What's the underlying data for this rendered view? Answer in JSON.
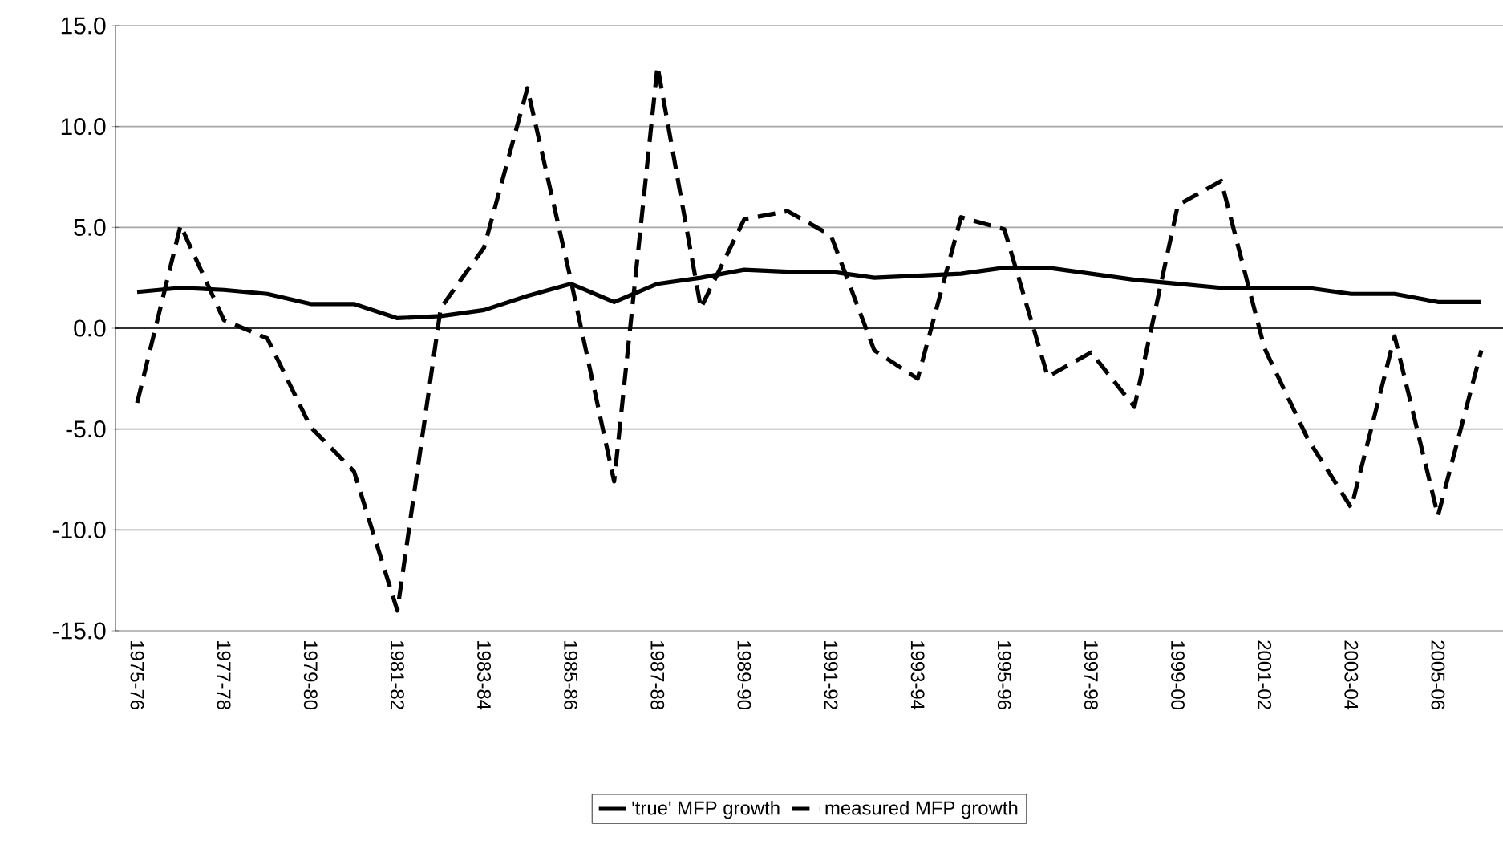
{
  "chart_data": {
    "type": "line",
    "categories": [
      "1975-76",
      null,
      "1977-78",
      null,
      "1979-80",
      null,
      "1981-82",
      null,
      "1983-84",
      null,
      "1985-86",
      null,
      "1987-88",
      null,
      "1989-90",
      null,
      "1991-92",
      null,
      "1993-94",
      null,
      "1995-96",
      null,
      "1997-98",
      null,
      "1999-00",
      null,
      "2001-02",
      null,
      "2003-04",
      null,
      "2005-06",
      null
    ],
    "series": [
      {
        "name": "'true' MFP growth",
        "color": "#000000",
        "line_style": "solid",
        "values": [
          1.8,
          2.0,
          1.9,
          1.7,
          1.2,
          1.2,
          0.5,
          0.6,
          0.9,
          1.6,
          2.2,
          1.3,
          2.2,
          2.5,
          2.9,
          2.8,
          2.8,
          2.5,
          2.6,
          2.7,
          3.0,
          3.0,
          2.7,
          2.4,
          2.2,
          2.0,
          2.0,
          2.0,
          1.7,
          1.7,
          1.3,
          1.3
        ]
      },
      {
        "name": "measured MFP growth",
        "color": "#000000",
        "line_style": "dashed",
        "values": [
          -3.7,
          5.1,
          0.4,
          -0.5,
          -4.9,
          -7.1,
          -14.0,
          1.0,
          4.0,
          11.9,
          2.4,
          -7.6,
          13.0,
          1.0,
          5.4,
          5.8,
          4.6,
          -1.1,
          -2.5,
          5.5,
          4.9,
          -2.4,
          -1.2,
          -3.9,
          6.1,
          7.3,
          -1.0,
          -5.5,
          -8.9,
          -0.4,
          -9.3,
          -1.1
        ]
      }
    ],
    "ylim": [
      -15,
      15
    ],
    "yticks": [
      {
        "value": -15,
        "label": "-15.0"
      },
      {
        "value": -10,
        "label": "-10.0"
      },
      {
        "value": -5,
        "label": "-5.0"
      },
      {
        "value": 0,
        "label": "0.0"
      },
      {
        "value": 5,
        "label": "5.0"
      },
      {
        "value": 10,
        "label": "10.0"
      },
      {
        "value": 15,
        "label": "15.0"
      }
    ],
    "grid": "y",
    "legend": "bottom",
    "marker": "none"
  }
}
